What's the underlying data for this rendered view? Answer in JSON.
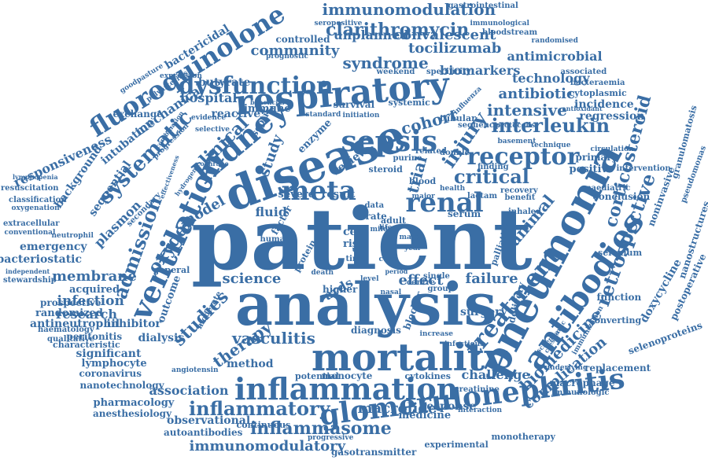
{
  "color": "#3a6ea5",
  "words": [
    "patient",
    "analysis",
    "disease",
    "respiratory",
    "mortality",
    "pneumonia",
    "inflammation",
    "glomerulonephritis",
    "ventilation",
    "antibodies",
    "treatment",
    "fluoroquinolone",
    "sepsis",
    "kidney",
    "renal",
    "receptor",
    "dysfunction",
    "systematic",
    "interleukin",
    "meta",
    "retrospective",
    "critical",
    "corticosteroid",
    "immunomodulation",
    "admission",
    "clarithromycin",
    "tocilizumab",
    "inflammatory",
    "inflammasome",
    "immunomodulatory",
    "macrolide",
    "vasculitis",
    "clinical",
    "injury",
    "oxygen",
    "model",
    "studies",
    "therapy",
    "science",
    "effect",
    "failure",
    "membrane",
    "infection",
    "research",
    "biomedicine",
    "complication",
    "syndrome",
    "cohort",
    "intensive",
    "antibiotic",
    "community",
    "convalescent",
    "unplanned",
    "biomarkers",
    "technology",
    "antimicrobial",
    "hospital",
    "butyrate",
    "mechanical",
    "intubation",
    "responsiveness",
    "background",
    "sequential",
    "plasmon",
    "emergency",
    "bacteriostatic",
    "acquired",
    "prospective",
    "randomized",
    "antineutrophil",
    "inhibitor",
    "dialysis",
    "significant",
    "lymphocyte",
    "coronavirus",
    "nanotechnology",
    "association",
    "pharmacology",
    "anesthesiology",
    "observational",
    "autoantibodies",
    "continuous",
    "challenge",
    "response",
    "medicine",
    "gasotransmitter",
    "monotherapy",
    "experimental",
    "doxycycline",
    "postoperative",
    "selenoproteins",
    "macrophage",
    "replacement",
    "immunologic",
    "regression",
    "incidence",
    "primary",
    "positive",
    "conclusion",
    "noninvasive",
    "surgery",
    "outcome",
    "method",
    "monocyte",
    "cytokines",
    "potential",
    "creatinine",
    "peritonitis",
    "characteristic",
    "converting",
    "function",
    "selenium",
    "animal",
    "trial",
    "study",
    "review",
    "ards",
    "fluid",
    "cell",
    "risk",
    "immune",
    "reactive",
    "survival",
    "bactericidal",
    "exchange",
    "controlled",
    "seropositive",
    "gastrointestinal",
    "immunological",
    "bloodstream",
    "cytoplasmic",
    "bacteraemia",
    "associated",
    "expression",
    "prognostic",
    "protein",
    "severe",
    "result",
    "factor",
    "enzyme",
    "septic",
    "steroid",
    "blood",
    "serum",
    "lactam",
    "recovery",
    "benefit",
    "inhaled",
    "palliative",
    "delivery",
    "blocker",
    "diagnosis",
    "single",
    "group",
    "higher",
    "adult",
    "rate",
    "data",
    "time",
    "death",
    "human",
    "general",
    "moderate",
    "goodpasture",
    "resuscitation",
    "classification",
    "oxygenation",
    "extracellular",
    "conventional",
    "haematology",
    "qualitative",
    "neutrophil",
    "independent",
    "stewardship",
    "secondary",
    "polyarteritis",
    "progression",
    "evidence",
    "selective",
    "nanostructures",
    "granulomatosis",
    "pseudomonas",
    "paediatric",
    "intervention",
    "circulation",
    "antioxidant",
    "infectious",
    "increase",
    "interaction",
    "underlying",
    "immunization",
    "crescentic",
    "randomised",
    "progressive",
    "angiotensin",
    "ischemia",
    "specificity",
    "weekend",
    "systemic",
    "tubular",
    "sequence",
    "protocells",
    "basement",
    "technique",
    "influenza",
    "standard",
    "initiation",
    "beneficial",
    "lymphopenia",
    "combination",
    "cochrane",
    "purine",
    "related",
    "double",
    "finding",
    "effectiveness",
    "hydrogen",
    "mild",
    "male",
    "life",
    "year",
    "centre",
    "nasal",
    "level",
    "period",
    "cure",
    "unit",
    "major",
    "health"
  ]
}
